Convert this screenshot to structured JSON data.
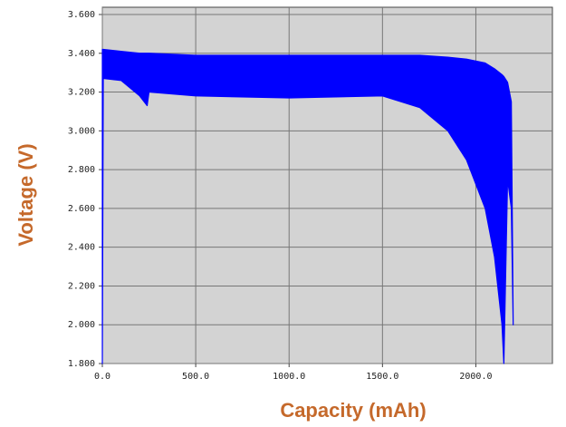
{
  "chart_data": {
    "type": "band",
    "x_label": "Capacity (mAh)",
    "y_label": "Voltage (V)",
    "x": [
      0,
      5,
      100,
      200,
      240,
      250,
      500,
      1000,
      1500,
      1700,
      1850,
      1950,
      2050,
      2100,
      2140,
      2150,
      2170,
      2190,
      2200
    ],
    "series": [
      {
        "color": "#0000ff",
        "values": [
          3.42,
          3.42,
          3.41,
          3.4,
          3.4,
          3.4,
          3.39,
          3.39,
          3.39,
          3.39,
          3.38,
          3.37,
          3.35,
          3.32,
          3.29,
          3.28,
          3.25,
          3.15,
          2.0
        ]
      },
      {
        "color": "#0000ff",
        "values": [
          1.8,
          3.27,
          3.26,
          3.18,
          3.13,
          3.2,
          3.18,
          3.17,
          3.18,
          3.12,
          3.0,
          2.85,
          2.6,
          2.35,
          2.0,
          1.8,
          2.75,
          2.6,
          2.0
        ]
      }
    ],
    "xlim": [
      0,
      2410
    ],
    "ylim": [
      1.8,
      3.6
    ],
    "xticks": [
      {
        "value": 0,
        "label": "0.0"
      },
      {
        "value": 500,
        "label": "500.0"
      },
      {
        "value": 1000,
        "label": "1000.0"
      },
      {
        "value": 1500,
        "label": "1500.0"
      },
      {
        "value": 2000,
        "label": "2000.0"
      }
    ],
    "yticks": [
      {
        "value": 1.8,
        "label": "1.800"
      },
      {
        "value": 2.0,
        "label": "2.000"
      },
      {
        "value": 2.2,
        "label": "2.200"
      },
      {
        "value": 2.4,
        "label": "2.400"
      },
      {
        "value": 2.6,
        "label": "2.600"
      },
      {
        "value": 2.8,
        "label": "2.800"
      },
      {
        "value": 3.0,
        "label": "3.000"
      },
      {
        "value": 3.2,
        "label": "3.200"
      },
      {
        "value": 3.4,
        "label": "3.400"
      },
      {
        "value": 3.6,
        "label": "3.600"
      }
    ],
    "grid": true
  }
}
